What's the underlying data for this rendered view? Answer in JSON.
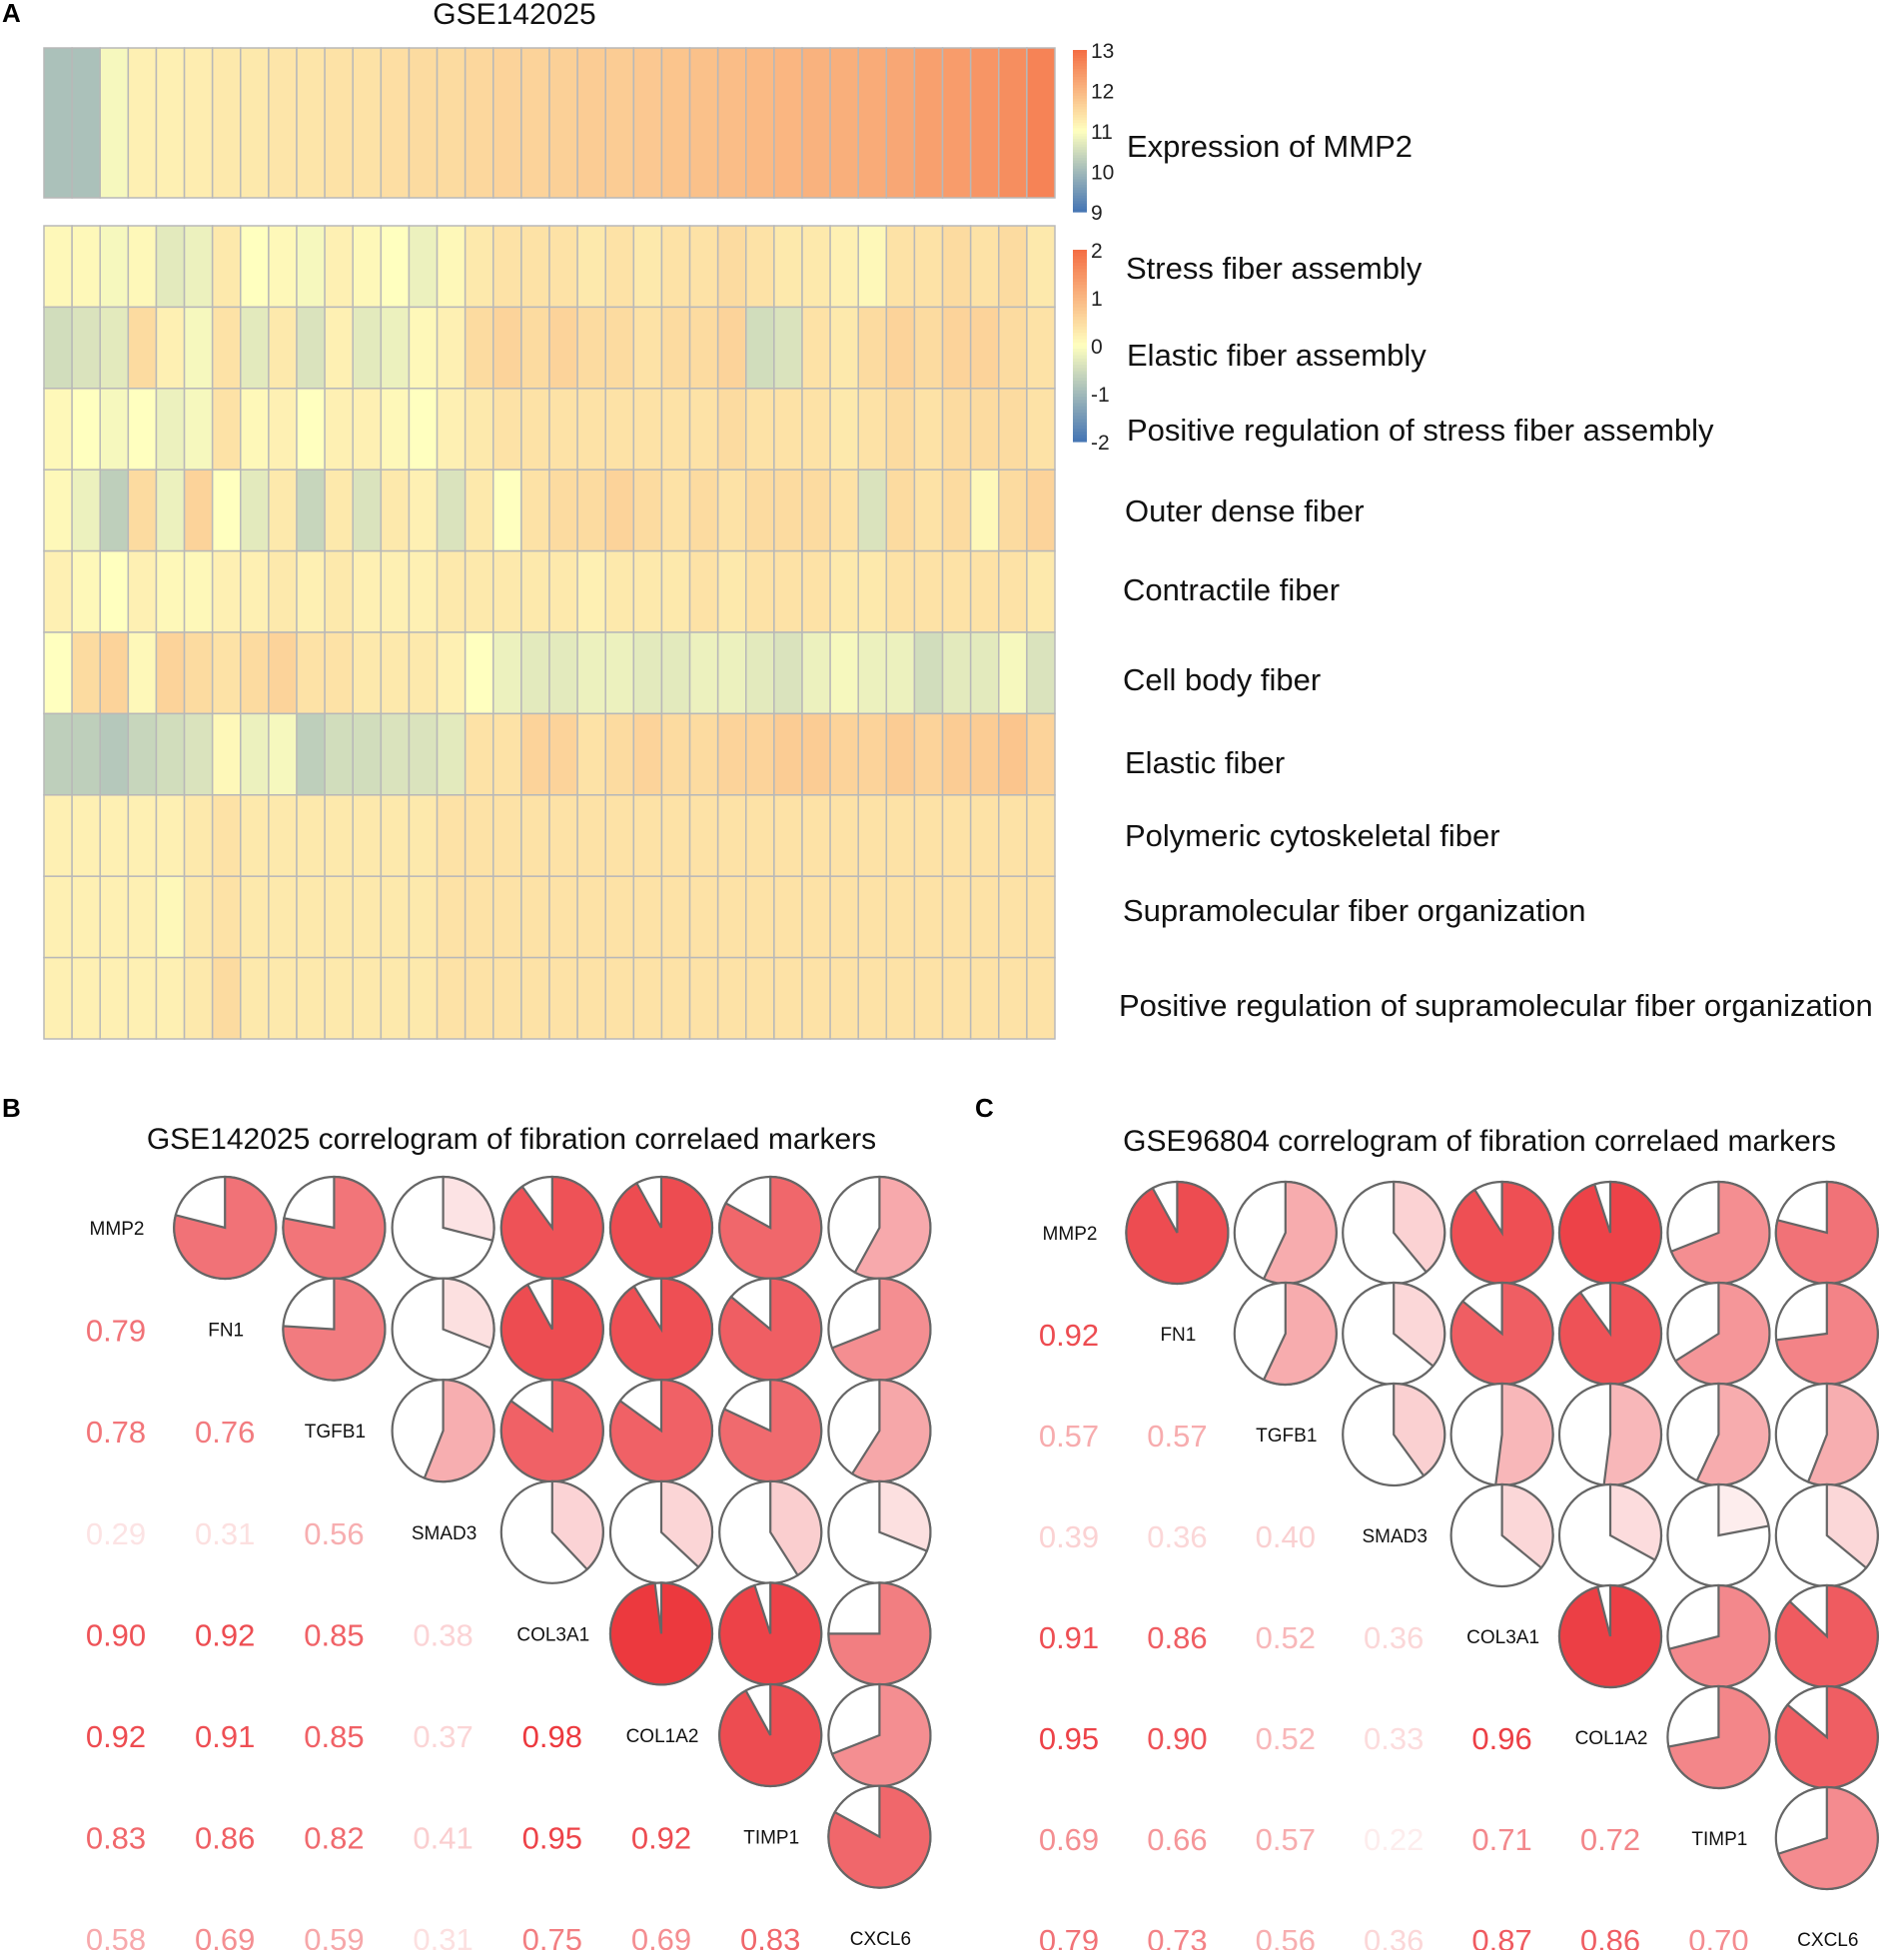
{
  "panel_labels": {
    "a": "A",
    "b": "B",
    "c": "C"
  },
  "chart_data": [
    {
      "type": "heatmap",
      "panel": "A",
      "title": "GSE142025",
      "top_bar": {
        "label": "Expression of MMP2",
        "legend_ticks": [
          "13",
          "12",
          "11",
          "10",
          "9"
        ],
        "legend_range": [
          9,
          13
        ],
        "colors": {
          "low": "#4575b4",
          "mid": "#ffffbf",
          "high": "#f46d43"
        },
        "values": [
          10.1,
          10.1,
          10.9,
          11.2,
          11.2,
          11.25,
          11.3,
          11.3,
          11.35,
          11.35,
          11.4,
          11.4,
          11.45,
          11.5,
          11.5,
          11.55,
          11.6,
          11.6,
          11.65,
          11.7,
          11.7,
          11.75,
          11.8,
          11.85,
          11.9,
          11.95,
          12.0,
          12.05,
          12.1,
          12.15,
          12.2,
          12.3,
          12.35,
          12.45,
          12.55,
          12.7
        ]
      },
      "gsva": {
        "legend_ticks": [
          "2",
          "1",
          "0",
          "-1",
          "-2"
        ],
        "legend_range": [
          -2,
          2
        ],
        "rows": [
          {
            "label": "Stress fiber assembly",
            "values": [
              0.1,
              0.1,
              -0.1,
              0.1,
              -0.3,
              -0.2,
              0.3,
              0.0,
              0.1,
              -0.1,
              0.2,
              0.1,
              0.0,
              -0.2,
              0.1,
              0.3,
              0.4,
              0.4,
              0.4,
              0.3,
              0.4,
              0.3,
              0.4,
              0.4,
              0.5,
              0.4,
              0.3,
              0.3,
              0.2,
              0.1,
              0.4,
              0.4,
              0.5,
              0.4,
              0.5,
              0.3
            ]
          },
          {
            "label": "Elastic fiber assembly",
            "values": [
              -0.5,
              -0.4,
              -0.3,
              0.5,
              0.2,
              -0.1,
              0.4,
              -0.3,
              0.3,
              -0.4,
              0.2,
              -0.3,
              -0.2,
              0.1,
              0.2,
              0.5,
              0.6,
              0.5,
              0.6,
              0.5,
              0.5,
              0.4,
              0.5,
              0.5,
              0.6,
              -0.5,
              -0.4,
              0.4,
              0.3,
              0.5,
              0.6,
              0.5,
              0.6,
              0.6,
              0.5,
              0.4
            ]
          },
          {
            "label": "Positive regulation of stress fiber assembly",
            "values": [
              0.1,
              0.0,
              -0.1,
              0.0,
              -0.2,
              -0.1,
              0.4,
              0.1,
              0.2,
              0.0,
              0.2,
              0.2,
              0.1,
              0.0,
              0.2,
              0.3,
              0.4,
              0.4,
              0.4,
              0.4,
              0.4,
              0.4,
              0.4,
              0.4,
              0.5,
              0.4,
              0.4,
              0.4,
              0.3,
              0.4,
              0.5,
              0.4,
              0.5,
              0.5,
              0.5,
              0.4
            ]
          },
          {
            "label": "Outer dense fiber",
            "values": [
              0.1,
              -0.2,
              -0.7,
              0.5,
              -0.2,
              0.6,
              0.0,
              -0.3,
              0.3,
              -0.6,
              0.3,
              -0.4,
              0.3,
              0.2,
              -0.4,
              0.3,
              0.0,
              0.4,
              0.5,
              0.5,
              0.6,
              0.5,
              0.4,
              0.5,
              0.4,
              0.5,
              0.5,
              0.5,
              0.4,
              -0.4,
              0.5,
              0.4,
              0.5,
              0.1,
              0.5,
              0.6
            ]
          },
          {
            "label": "Contractile fiber",
            "values": [
              0.2,
              0.1,
              0.0,
              0.2,
              0.1,
              0.1,
              0.2,
              0.2,
              0.3,
              0.2,
              0.3,
              0.2,
              0.2,
              0.2,
              0.3,
              0.3,
              0.3,
              0.3,
              0.3,
              0.2,
              0.3,
              0.3,
              0.3,
              0.4,
              0.3,
              0.4,
              0.4,
              0.4,
              0.3,
              0.3,
              0.4,
              0.4,
              0.4,
              0.4,
              0.4,
              0.3
            ]
          },
          {
            "label": "Cell body fiber",
            "values": [
              0.0,
              0.5,
              0.6,
              0.1,
              0.6,
              0.5,
              0.4,
              0.5,
              0.6,
              0.4,
              0.4,
              0.3,
              0.3,
              0.3,
              0.2,
              0.0,
              -0.2,
              -0.3,
              -0.3,
              -0.2,
              -0.2,
              -0.3,
              -0.3,
              -0.2,
              -0.2,
              -0.3,
              -0.4,
              -0.2,
              -0.1,
              -0.2,
              -0.2,
              -0.5,
              -0.3,
              -0.3,
              -0.1,
              -0.4
            ]
          },
          {
            "label": "Elastic fiber",
            "values": [
              -0.7,
              -0.7,
              -0.8,
              -0.6,
              -0.5,
              -0.4,
              0.1,
              -0.2,
              -0.1,
              -0.7,
              -0.5,
              -0.5,
              -0.4,
              -0.4,
              -0.3,
              0.4,
              0.4,
              0.6,
              0.6,
              0.4,
              0.5,
              0.6,
              0.5,
              0.5,
              0.6,
              0.6,
              0.7,
              0.7,
              0.6,
              0.6,
              0.7,
              0.6,
              0.7,
              0.7,
              0.8,
              0.6
            ]
          },
          {
            "label": "Polymeric cytoskeletal fiber",
            "values": [
              0.2,
              0.2,
              0.2,
              0.2,
              0.2,
              0.3,
              0.4,
              0.3,
              0.3,
              0.3,
              0.3,
              0.3,
              0.3,
              0.3,
              0.4,
              0.4,
              0.4,
              0.4,
              0.4,
              0.4,
              0.4,
              0.4,
              0.4,
              0.4,
              0.4,
              0.4,
              0.4,
              0.4,
              0.4,
              0.4,
              0.4,
              0.4,
              0.4,
              0.4,
              0.4,
              0.4
            ]
          },
          {
            "label": "Supramolecular fiber organization",
            "values": [
              0.2,
              0.2,
              0.2,
              0.2,
              0.1,
              0.3,
              0.4,
              0.3,
              0.3,
              0.3,
              0.3,
              0.3,
              0.3,
              0.3,
              0.4,
              0.4,
              0.4,
              0.4,
              0.4,
              0.4,
              0.4,
              0.4,
              0.4,
              0.4,
              0.4,
              0.4,
              0.4,
              0.4,
              0.4,
              0.4,
              0.4,
              0.4,
              0.4,
              0.4,
              0.4,
              0.4
            ]
          },
          {
            "label": "Positive regulation of supramolecular fiber organization",
            "values": [
              0.2,
              0.2,
              0.2,
              0.2,
              0.2,
              0.3,
              0.5,
              0.3,
              0.3,
              0.3,
              0.3,
              0.3,
              0.3,
              0.3,
              0.4,
              0.4,
              0.4,
              0.4,
              0.4,
              0.4,
              0.4,
              0.4,
              0.4,
              0.4,
              0.4,
              0.4,
              0.4,
              0.4,
              0.4,
              0.4,
              0.4,
              0.4,
              0.4,
              0.4,
              0.4,
              0.4
            ]
          }
        ]
      }
    },
    {
      "type": "correlogram",
      "panel": "B",
      "title": "GSE142025 correlogram of fibration correlaed markers",
      "genes": [
        "MMP2",
        "FN1",
        "TGFB1",
        "SMAD3",
        "COL3A1",
        "COL1A2",
        "TIMP1",
        "CXCL6"
      ],
      "lower": [
        [],
        [
          "0.79"
        ],
        [
          "0.78",
          "0.76"
        ],
        [
          "0.29",
          "0.31",
          "0.56"
        ],
        [
          "0.90",
          "0.92",
          "0.85",
          "0.38"
        ],
        [
          "0.92",
          "0.91",
          "0.85",
          "0.37",
          "0.98"
        ],
        [
          "0.83",
          "0.86",
          "0.82",
          "0.41",
          "0.95",
          "0.92"
        ],
        [
          "0.58",
          "0.69",
          "0.59",
          "0.31",
          "0.75",
          "0.69",
          "0.83"
        ]
      ]
    },
    {
      "type": "correlogram",
      "panel": "C",
      "title": "GSE96804 correlogram of fibration correlaed markers",
      "genes": [
        "MMP2",
        "FN1",
        "TGFB1",
        "SMAD3",
        "COL3A1",
        "COL1A2",
        "TIMP1",
        "CXCL6"
      ],
      "lower": [
        [],
        [
          "0.92"
        ],
        [
          "0.57",
          "0.57"
        ],
        [
          "0.39",
          "0.36",
          "0.40"
        ],
        [
          "0.91",
          "0.86",
          "0.52",
          "0.36"
        ],
        [
          "0.95",
          "0.90",
          "0.52",
          "0.33",
          "0.96"
        ],
        [
          "0.69",
          "0.66",
          "0.57",
          "0.22",
          "0.71",
          "0.72"
        ],
        [
          "0.79",
          "0.73",
          "0.56",
          "0.36",
          "0.87",
          "0.86",
          "0.70"
        ]
      ]
    }
  ]
}
